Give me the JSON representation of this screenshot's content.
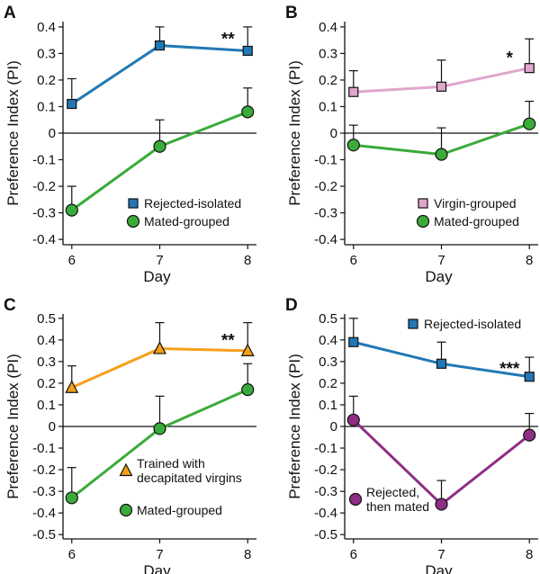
{
  "chart_data": [
    {
      "panel": "A",
      "type": "line",
      "xlabel": "Day",
      "ylabel": "Preference Index (PI)",
      "x": [
        6,
        7,
        8
      ],
      "xlim": [
        5.9,
        8.1
      ],
      "ylim": [
        -0.42,
        0.42
      ],
      "yticks": [
        0.4,
        0.3,
        0.2,
        0.1,
        0,
        -0.1,
        -0.2,
        -0.3,
        -0.4
      ],
      "ytick_labels": [
        "0.4",
        "0.3",
        "0.2",
        "0.1",
        "0",
        "-0.1",
        "-0.2",
        "-0.3",
        "-0.4"
      ],
      "legend_position": "bottom-right",
      "series": [
        {
          "name": "Rejected-isolated",
          "marker": "square",
          "color": "#2278b5",
          "values": [
            0.11,
            0.33,
            0.31
          ],
          "errors": [
            0.095,
            0.07,
            0.09
          ]
        },
        {
          "name": "Mated-grouped",
          "marker": "circle",
          "color": "#3aab3a",
          "values": [
            -0.29,
            -0.05,
            0.08
          ],
          "errors": [
            0.09,
            0.1,
            0.09
          ]
        }
      ],
      "annotations": [
        {
          "text": "**",
          "x": 8,
          "y": 0.34
        }
      ]
    },
    {
      "panel": "B",
      "type": "line",
      "xlabel": "Day",
      "ylabel": "Preference Index (PI)",
      "x": [
        6,
        7,
        8
      ],
      "xlim": [
        5.9,
        8.1
      ],
      "ylim": [
        -0.42,
        0.42
      ],
      "yticks": [
        0.4,
        0.3,
        0.2,
        0.1,
        0,
        -0.1,
        -0.2,
        -0.3,
        -0.4
      ],
      "ytick_labels": [
        "0.4",
        "0.3",
        "0.2",
        "0.1",
        "0",
        "-0.1",
        "-0.2",
        "-0.3",
        "-0.4"
      ],
      "legend_position": "bottom-right",
      "series": [
        {
          "name": "Virgin-grouped",
          "marker": "square",
          "color": "#e0a6cc",
          "values": [
            0.155,
            0.175,
            0.245
          ],
          "errors": [
            0.08,
            0.1,
            0.11
          ]
        },
        {
          "name": "Mated-grouped",
          "marker": "circle",
          "color": "#3aab3a",
          "values": [
            -0.045,
            -0.08,
            0.035
          ],
          "errors": [
            0.075,
            0.1,
            0.085
          ]
        }
      ],
      "annotations": [
        {
          "text": "*",
          "x": 8,
          "y": 0.27
        }
      ]
    },
    {
      "panel": "C",
      "type": "line",
      "xlabel": "Day",
      "ylabel": "Preference Index (PI)",
      "x": [
        6,
        7,
        8
      ],
      "xlim": [
        5.9,
        8.1
      ],
      "ylim": [
        -0.52,
        0.52
      ],
      "yticks": [
        0.5,
        0.4,
        0.3,
        0.2,
        0.1,
        0,
        -0.1,
        -0.2,
        -0.3,
        -0.4,
        -0.5
      ],
      "ytick_labels": [
        "0.5",
        "0.4",
        "0.3",
        "0.2",
        "0.1",
        "0",
        "-0.1",
        "-0.2",
        "-0.3",
        "-0.4",
        "-0.5"
      ],
      "legend_position": "bottom-right",
      "series": [
        {
          "name": "Trained with decapitated virgins",
          "label_lines": [
            "Trained with",
            "decapitated virgins"
          ],
          "marker": "triangle",
          "color": "#f5a01a",
          "values": [
            0.18,
            0.36,
            0.35
          ],
          "errors": [
            0.1,
            0.12,
            0.13
          ]
        },
        {
          "name": "Mated-grouped",
          "marker": "circle",
          "color": "#3aab3a",
          "values": [
            -0.33,
            -0.01,
            0.17
          ],
          "errors": [
            0.14,
            0.15,
            0.12
          ]
        }
      ],
      "annotations": [
        {
          "text": "**",
          "x": 8,
          "y": 0.38
        }
      ]
    },
    {
      "panel": "D",
      "type": "line",
      "xlabel": "Day",
      "ylabel": "Preference Index (PI)",
      "x": [
        6,
        7,
        8
      ],
      "xlim": [
        5.9,
        8.1
      ],
      "ylim": [
        -0.52,
        0.52
      ],
      "yticks": [
        0.5,
        0.4,
        0.3,
        0.2,
        0.1,
        0,
        -0.1,
        -0.2,
        -0.3,
        -0.4,
        -0.5
      ],
      "ytick_labels": [
        "0.5",
        "0.4",
        "0.3",
        "0.2",
        "0.1",
        "0",
        "-0.1",
        "-0.2",
        "-0.3",
        "-0.4",
        "-0.5"
      ],
      "legend_position": "split",
      "series": [
        {
          "name": "Rejected-isolated",
          "marker": "square",
          "color": "#2278b5",
          "values": [
            0.39,
            0.29,
            0.23
          ],
          "errors": [
            0.11,
            0.1,
            0.09
          ]
        },
        {
          "name": "Rejected, then mated",
          "label_lines": [
            "Rejected,",
            "then mated"
          ],
          "marker": "circle",
          "color": "#8e2d86",
          "values": [
            0.03,
            -0.36,
            -0.04
          ],
          "errors": [
            0.11,
            0.11,
            0.1
          ]
        }
      ],
      "annotations": [
        {
          "text": "***",
          "x": 8,
          "y": 0.25
        }
      ]
    }
  ]
}
